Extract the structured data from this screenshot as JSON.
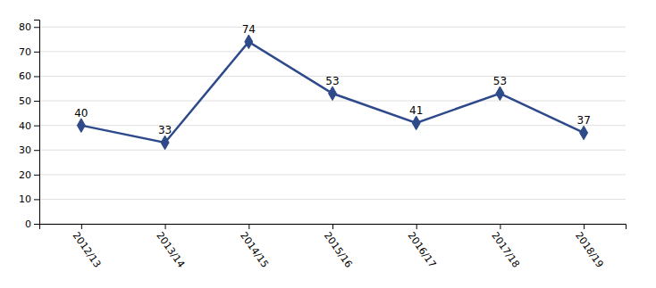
{
  "chart_data": {
    "type": "line",
    "categories": [
      "2012/13",
      "2013/14",
      "2014/15",
      "2015/16",
      "2016/17",
      "2017/18",
      "2018/19"
    ],
    "values": [
      40,
      33,
      74,
      53,
      41,
      53,
      37
    ],
    "color": "#2E4A8B",
    "marker": "diamond",
    "ylim": [
      0,
      83
    ],
    "yticks": [
      0,
      10,
      20,
      30,
      40,
      50,
      60,
      70,
      80
    ],
    "grid": true,
    "data_labels": true
  }
}
